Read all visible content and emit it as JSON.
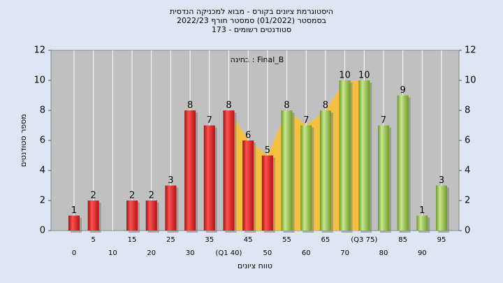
{
  "chart_data": {
    "type": "bar",
    "title_lines": [
      "היסטוגרמת ציונים בקורס - מבוא למכניקה הנדסית",
      "בסמסטר  (01/2022)  סמסטר חורף 2022/23",
      "סטודנטים רשומים - 173"
    ],
    "annotation": "בחינה : Final_B",
    "x_label": "טווח ציונים",
    "y_label": "מספר סטודנטים",
    "categories": [
      "0",
      "5",
      "10",
      "15",
      "20",
      "25",
      "30",
      "35",
      "(Q1 40)",
      "45",
      "50",
      "55",
      "60",
      "65",
      "70",
      "(Q3 75)",
      "80",
      "85",
      "90",
      "95"
    ],
    "values": [
      1,
      2,
      0,
      2,
      2,
      3,
      8,
      7,
      8,
      6,
      5,
      8,
      7,
      8,
      10,
      10,
      7,
      9,
      1,
      3
    ],
    "colors": [
      "#e02020",
      "#8ab838"
    ],
    "ylim": [
      0,
      12
    ],
    "yticks": [
      0,
      2,
      4,
      6,
      8,
      10,
      12
    ],
    "y2lim": [
      0,
      12
    ],
    "y2ticks": [
      0,
      2,
      4,
      6,
      8,
      10,
      12
    ],
    "grid": "x"
  }
}
